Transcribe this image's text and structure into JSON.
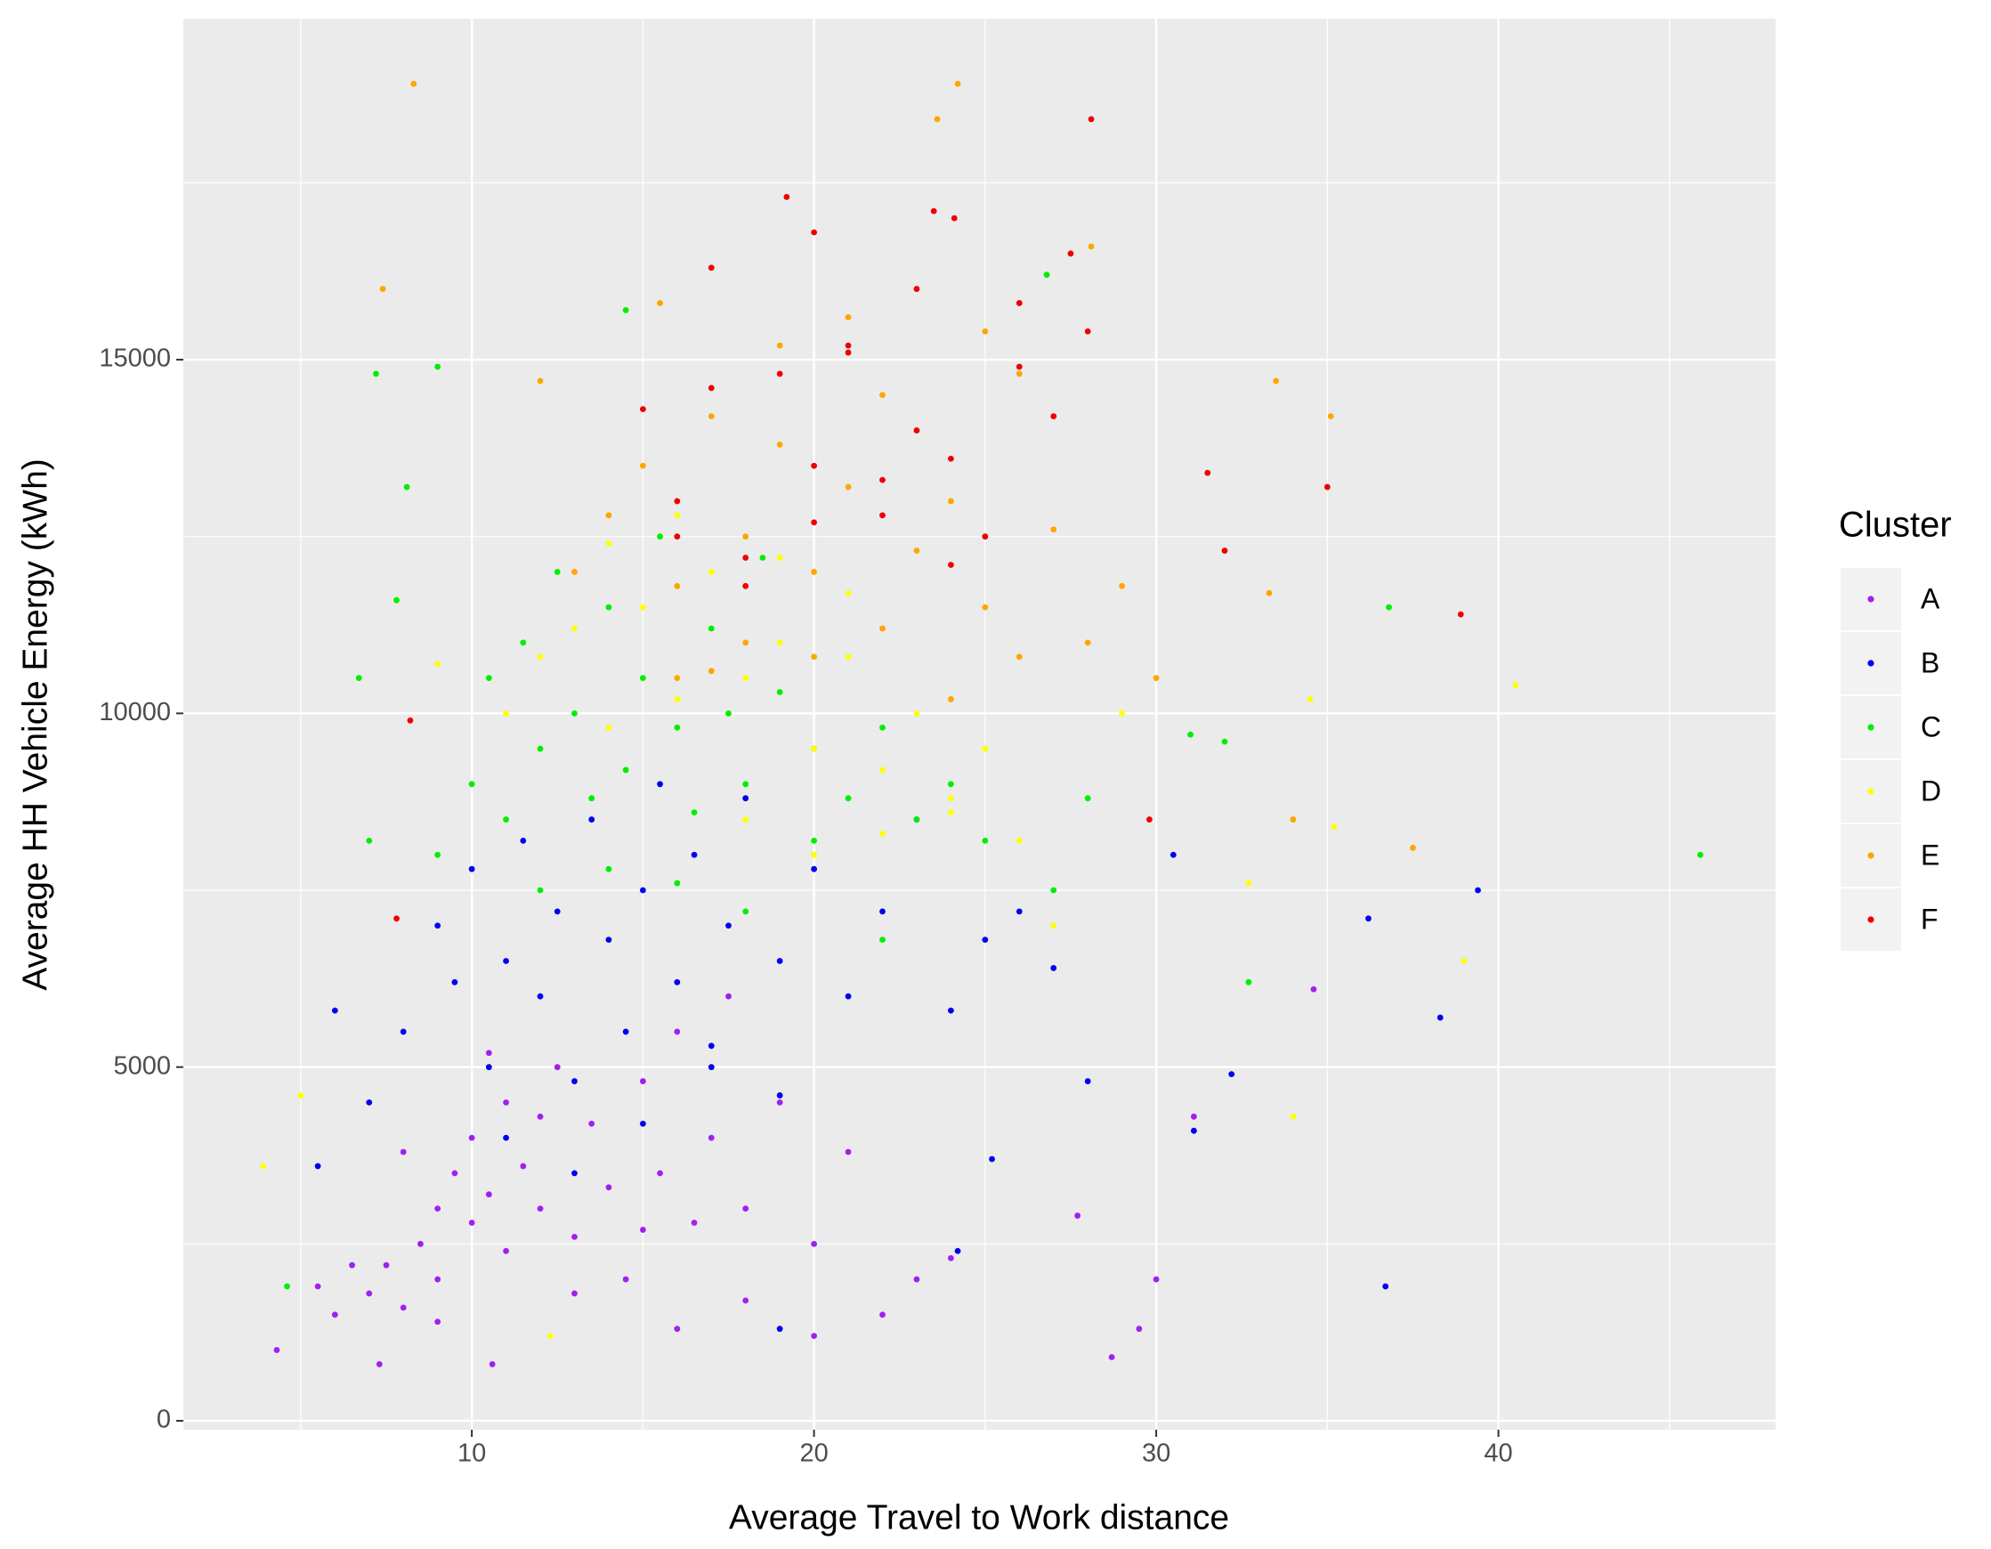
{
  "chart_data": {
    "type": "scatter",
    "x_label": "Average Travel to Work distance",
    "y_label": "Average HH Vehicle Energy (kWh)",
    "legend_title": "Cluster",
    "legend_position": "right",
    "grid": true,
    "xlim": [
      1.57,
      48.1
    ],
    "ylim": [
      -126,
      19820
    ],
    "xticks": [
      10,
      20,
      30,
      40
    ],
    "yticks": [
      0,
      5000,
      10000,
      15000
    ],
    "xminorticks": [
      5,
      15,
      25,
      35,
      45
    ],
    "yminorticks": [
      2500,
      7500,
      12500,
      17500
    ],
    "series": [
      {
        "name": "A",
        "color": "#a020f0",
        "x": [
          7,
          7.5,
          8,
          8.5,
          9,
          9,
          9.5,
          10,
          10,
          10.5,
          11,
          11,
          11.5,
          12,
          12.5,
          13,
          13.5,
          14,
          14.5,
          15,
          15.5,
          16,
          16.5,
          17,
          17.5,
          18,
          19,
          20,
          21,
          22,
          6.5,
          6,
          5.5,
          8,
          9,
          10.5,
          12,
          13,
          15,
          16,
          18,
          20,
          23,
          24,
          29.5,
          28.7,
          30,
          31.1,
          34.6,
          27.7,
          4.3,
          7.3,
          10.6
        ],
        "values": [
          1800,
          2200,
          1600,
          2500,
          3000,
          2000,
          3500,
          2800,
          4000,
          3200,
          2400,
          4500,
          3600,
          3000,
          5000,
          2600,
          4200,
          3300,
          2000,
          4800,
          3500,
          5500,
          2800,
          4000,
          6000,
          3000,
          4500,
          2500,
          3800,
          1500,
          2200,
          1500,
          1900,
          3800,
          1400,
          5200,
          4300,
          1800,
          2700,
          1300,
          1700,
          1200,
          2000,
          2300,
          1300,
          900,
          2000,
          4300,
          6100,
          2900,
          1000,
          800,
          800
        ]
      },
      {
        "name": "B",
        "color": "#0000ee",
        "x": [
          8,
          9,
          9.5,
          10,
          10.5,
          11,
          11.5,
          12,
          12.5,
          13,
          13.5,
          14,
          14.5,
          15,
          15.5,
          16,
          16.5,
          17,
          17.5,
          18,
          19,
          20,
          21,
          22,
          23,
          24,
          25,
          7,
          6,
          5.5,
          11,
          13,
          15,
          17,
          19,
          26,
          27,
          28,
          30.5,
          31.1,
          32.2,
          36.2,
          36.7,
          38.3,
          39.4,
          25.2,
          24.2,
          19
        ],
        "values": [
          5500,
          7000,
          6200,
          7800,
          5000,
          6500,
          8200,
          6000,
          7200,
          4800,
          8500,
          6800,
          5500,
          7500,
          9000,
          6200,
          8000,
          5300,
          7000,
          8800,
          6500,
          7800,
          6000,
          7200,
          8500,
          5800,
          6800,
          4500,
          5800,
          3600,
          4000,
          3500,
          4200,
          5000,
          4600,
          7200,
          6400,
          4800,
          8000,
          4100,
          4900,
          7100,
          1900,
          5700,
          7500,
          3700,
          2400,
          1300
        ]
      },
      {
        "name": "C",
        "color": "#00ee00",
        "x": [
          10,
          10.5,
          11,
          11.5,
          12,
          12.5,
          13,
          13.5,
          14,
          14.5,
          15,
          15.5,
          16,
          16.5,
          17,
          17.5,
          18,
          18.5,
          19,
          20,
          21,
          22,
          23,
          24,
          25,
          9,
          12,
          14,
          16,
          18,
          20,
          22,
          27,
          28,
          7.2,
          9,
          8.1,
          7.8,
          6.7,
          14.5,
          26.8,
          45.9,
          36.8,
          32.7,
          31,
          32,
          4.6,
          7
        ],
        "values": [
          9000,
          10500,
          8500,
          11000,
          9500,
          12000,
          10000,
          8800,
          11500,
          9200,
          10500,
          12500,
          9800,
          8600,
          11200,
          10000,
          9000,
          12200,
          10300,
          9500,
          8800,
          9800,
          8500,
          9000,
          8200,
          8000,
          7500,
          7800,
          7600,
          7200,
          8200,
          6800,
          7500,
          8800,
          14800,
          14900,
          13200,
          11600,
          10500,
          15700,
          16200,
          8000,
          11500,
          6200,
          9700,
          9600,
          1900,
          8200
        ]
      },
      {
        "name": "D",
        "color": "#ffff00",
        "x": [
          11,
          12,
          13,
          14,
          15,
          16,
          17,
          18,
          19,
          20,
          21,
          22,
          23,
          24,
          25,
          26,
          14,
          16,
          18,
          20,
          22,
          24,
          17,
          19,
          21,
          40.5,
          39,
          34,
          35.2,
          34.5,
          32.7,
          3.9,
          5,
          9,
          12.3,
          27,
          29
        ],
        "values": [
          10000,
          10800,
          11200,
          9800,
          11500,
          10200,
          12000,
          10500,
          11000,
          9500,
          10800,
          9200,
          10000,
          8800,
          9500,
          8200,
          12400,
          12800,
          8500,
          8000,
          8300,
          8600,
          10600,
          12200,
          11700,
          10400,
          6500,
          4300,
          8400,
          10200,
          7600,
          3600,
          4600,
          10700,
          1200,
          7000,
          10000
        ]
      },
      {
        "name": "E",
        "color": "#ffa500",
        "x": [
          13,
          14,
          15,
          16,
          17,
          18,
          19,
          20,
          21,
          22,
          23,
          24,
          25,
          26,
          27,
          28,
          29,
          16,
          18,
          20,
          22,
          24,
          26,
          19,
          21,
          23,
          25,
          17,
          8.3,
          7.4,
          23.6,
          24.2,
          35.1,
          33.5,
          37.5,
          34,
          33.3,
          12,
          15.5,
          28.1,
          30
        ],
        "values": [
          12000,
          12800,
          13500,
          11800,
          14200,
          12500,
          13800,
          12000,
          13200,
          14500,
          12300,
          13000,
          11500,
          14800,
          12600,
          11000,
          11800,
          10500,
          11000,
          10800,
          11200,
          10200,
          10800,
          15200,
          15600,
          14000,
          15400,
          10600,
          18900,
          16000,
          18400,
          18900,
          14200,
          14700,
          8100,
          8500,
          11700,
          14700,
          15800,
          16600,
          10500
        ]
      },
      {
        "name": "F",
        "color": "#ee0000",
        "x": [
          15,
          16,
          17,
          18,
          19,
          20,
          21,
          22,
          23,
          24,
          25,
          26,
          27,
          28,
          18,
          20,
          22,
          24,
          26,
          21,
          23,
          19.2,
          20,
          23.5,
          24.1,
          28.1,
          17,
          38.9,
          35,
          31.5,
          32,
          29.8,
          8.2,
          7.8,
          27.5,
          16
        ],
        "values": [
          14300,
          13000,
          14600,
          12200,
          14800,
          13500,
          15200,
          12800,
          14000,
          13600,
          12500,
          15800,
          14200,
          15400,
          11800,
          12700,
          13300,
          12100,
          14900,
          15100,
          16000,
          17300,
          16800,
          17100,
          17000,
          18400,
          16300,
          11400,
          13200,
          13400,
          12300,
          8500,
          9900,
          7100,
          16500,
          12500
        ]
      }
    ]
  }
}
